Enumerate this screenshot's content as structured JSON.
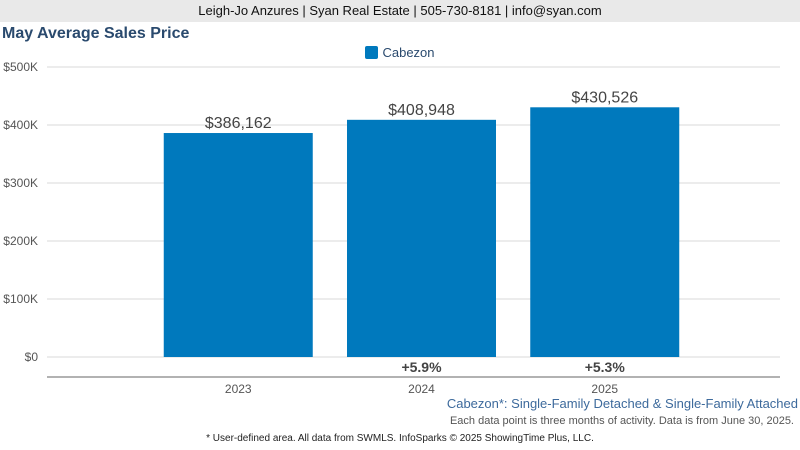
{
  "header": {
    "text": "Leigh-Jo Anzures | Syan Real Estate | 505-730-8181 | info@syan.com"
  },
  "chart_data": {
    "type": "bar",
    "title": "May Average Sales Price",
    "categories": [
      "2023",
      "2024",
      "2025"
    ],
    "series": [
      {
        "name": "Cabezon",
        "values": [
          386162,
          408948,
          430526
        ],
        "color": "#0079bd"
      }
    ],
    "data_labels": [
      "$386,162",
      "$408,948",
      "$430,526"
    ],
    "change_labels": [
      "",
      "+5.9%",
      "+5.3%"
    ],
    "yticks": [
      "$0",
      "$100K",
      "$200K",
      "$300K",
      "$400K",
      "$500K"
    ],
    "ylim": [
      0,
      500000
    ],
    "grid": true,
    "legend_position": "top-center",
    "xlabel": "",
    "ylabel": ""
  },
  "notes": {
    "area": "Cabezon*: Single-Family Detached & Single-Family Attached",
    "activity": "Each data point is three months of activity. Data is from June 30, 2025.",
    "footer": "* User-defined area. All data from SWMLS. InfoSparks © 2025 ShowingTime Plus, LLC."
  }
}
